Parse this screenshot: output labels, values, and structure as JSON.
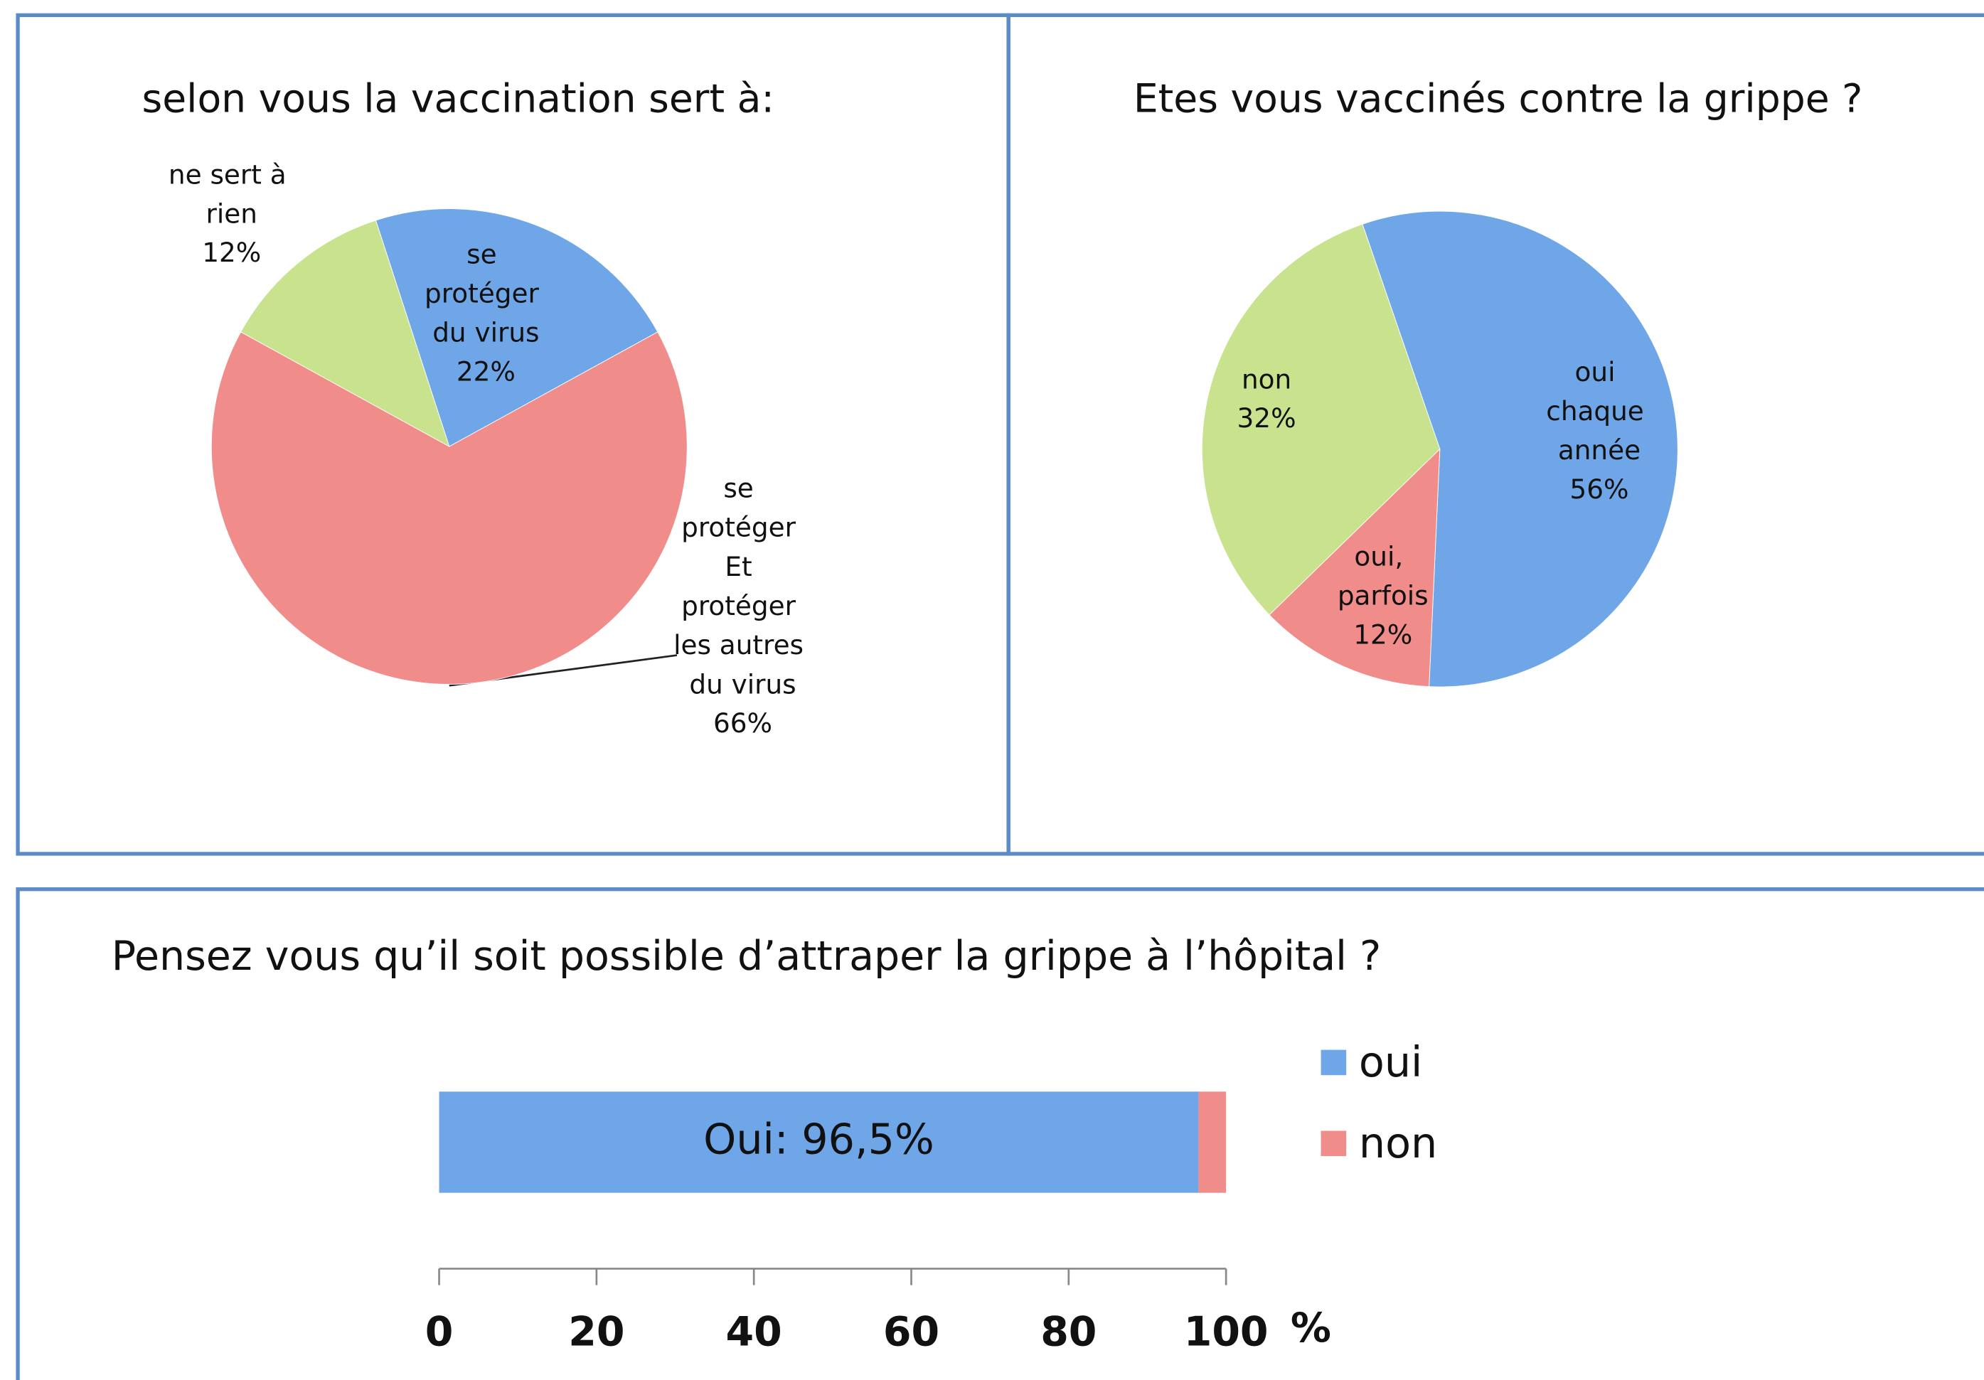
{
  "chart_data": [
    {
      "type": "pie",
      "title": "selon vous la vaccination sert à:",
      "categories": [
        "se protéger du virus",
        "se protéger Et protéger les autres du virus",
        "ne sert à rien"
      ],
      "values": [
        22,
        66,
        12
      ],
      "value_labels": [
        "22%",
        "66%",
        "12%"
      ],
      "colors": [
        "#6fa6e8",
        "#f08c89",
        "#c8e28e"
      ]
    },
    {
      "type": "pie",
      "title": "Etes vous vaccinés contre la grippe ?",
      "categories": [
        "oui chaque année",
        "oui, parfois",
        "non"
      ],
      "values": [
        56,
        12,
        32
      ],
      "value_labels": [
        "56%",
        "12%",
        "32%"
      ],
      "colors": [
        "#6fa6e8",
        "#f08c89",
        "#c8e28e"
      ]
    },
    {
      "type": "bar",
      "orientation": "horizontal",
      "stacked": true,
      "title": "Pensez vous qu’il soit possible d’attraper la grippe à l’hôpital ?",
      "series": [
        {
          "name": "oui",
          "color": "#6fa6e8",
          "values": [
            96.5
          ],
          "value_labels": [
            "Oui: 96,5%"
          ]
        },
        {
          "name": "non",
          "color": "#f08c89",
          "values": [
            3.5
          ]
        }
      ],
      "xlim": [
        0,
        100
      ],
      "xticks": [
        0,
        20,
        40,
        60,
        80,
        100
      ],
      "xlabel": "%",
      "legend": "right"
    }
  ]
}
